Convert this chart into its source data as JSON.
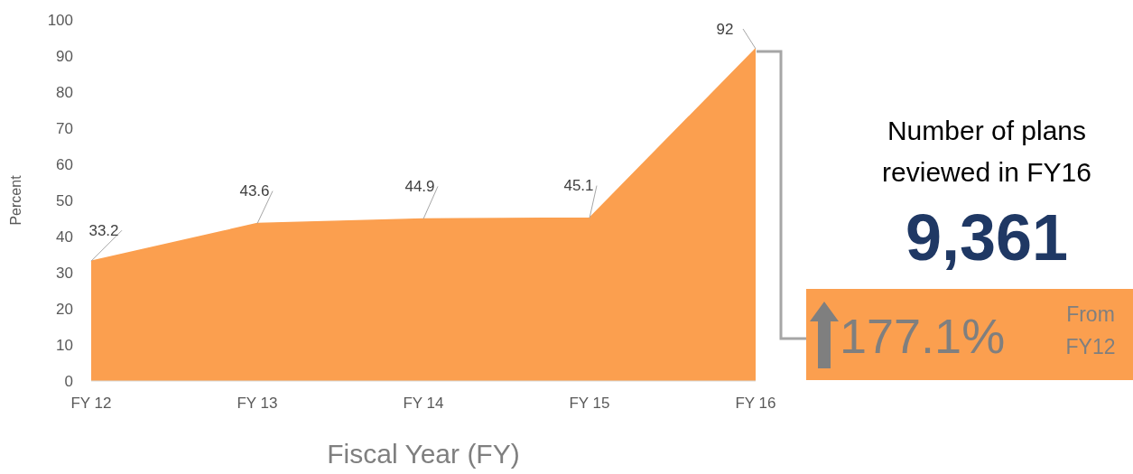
{
  "chart_data": {
    "type": "area",
    "xlabel": "Fiscal Year (FY)",
    "ylabel": "Percent",
    "categories": [
      "FY 12",
      "FY 13",
      "FY 14",
      "FY 15",
      "FY 16"
    ],
    "series": [
      {
        "color": "#fb9f4f",
        "values": [
          33.2,
          43.6,
          44.9,
          45.1,
          92
        ]
      }
    ],
    "ylim": [
      0,
      100
    ],
    "yticks": [
      0,
      10,
      20,
      30,
      40,
      50,
      60,
      70,
      80,
      90,
      100
    ],
    "data_labels": true,
    "annotations": [
      "Number of plans reviewed in FY16",
      "9,361",
      "177.1%",
      "From FY12"
    ]
  }
}
